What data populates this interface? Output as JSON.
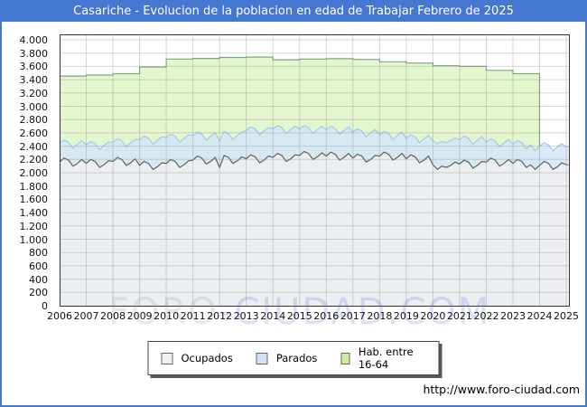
{
  "header": {
    "title": "Casariche - Evolucion de la poblacion en edad de Trabajar Febrero de 2025",
    "bg_color": "#4577d0",
    "text_color": "#ffffff"
  },
  "watermark": {
    "left": "FORO",
    "right": "-CIUDAD.COM"
  },
  "footer": {
    "url": "http://www.foro-ciudad.com"
  },
  "legend": {
    "items": [
      {
        "label": "Ocupados",
        "color": "#f2f2f2",
        "border": "#666666"
      },
      {
        "label": "Parados",
        "color": "#cfe2f8",
        "border": "#666666"
      },
      {
        "label": "Hab. entre 16-64",
        "color": "#c9ef9d",
        "border": "#666666"
      }
    ]
  },
  "chart_data": {
    "type": "area",
    "title": "Casariche - Evolucion de la poblacion en edad de Trabajar Febrero de 2025",
    "xlabel": "",
    "ylabel": "",
    "grid": true,
    "legend_position": "bottom",
    "x_axis": {
      "ticks": [
        2006,
        2007,
        2008,
        2009,
        2010,
        2011,
        2012,
        2013,
        2014,
        2015,
        2016,
        2017,
        2018,
        2019,
        2020,
        2021,
        2022,
        2023,
        2024,
        2025
      ],
      "range": [
        2006,
        2025.1
      ]
    },
    "y_axis": {
      "range": [
        0,
        4000
      ],
      "tick_step": 200,
      "tick_labels_top_to_bottom": [
        "4.000",
        "3.800",
        "3.600",
        "3.400",
        "3.200",
        "3.000",
        "2.800",
        "2.600",
        "2.400",
        "2.200",
        "2.000",
        "1.800",
        "1.600",
        "1.400",
        "1.200",
        "1.000",
        "800",
        "600",
        "400",
        "200",
        "0"
      ]
    },
    "x_spec": {
      "start": 2006,
      "points_per_year": 6,
      "count": 115,
      "extra": [
        2025.083
      ]
    },
    "series": [
      {
        "name": "Ocupados",
        "fill": "#f0f0f0",
        "line": "#606060",
        "values": [
          2160,
          2220,
          2190,
          2100,
          2140,
          2200,
          2140,
          2200,
          2170,
          2080,
          2120,
          2180,
          2170,
          2230,
          2200,
          2110,
          2150,
          2210,
          2110,
          2170,
          2140,
          2050,
          2090,
          2150,
          2140,
          2200,
          2170,
          2080,
          2120,
          2180,
          2190,
          2250,
          2220,
          2130,
          2170,
          2230,
          2080,
          2260,
          2230,
          2140,
          2180,
          2240,
          2210,
          2270,
          2240,
          2150,
          2190,
          2250,
          2230,
          2290,
          2260,
          2170,
          2210,
          2270,
          2260,
          2320,
          2290,
          2200,
          2240,
          2300,
          2250,
          2310,
          2280,
          2190,
          2230,
          2290,
          2220,
          2280,
          2250,
          2160,
          2200,
          2260,
          2250,
          2310,
          2280,
          2190,
          2230,
          2290,
          2210,
          2270,
          2240,
          2150,
          2190,
          2250,
          2120,
          2050,
          2100,
          2080,
          2110,
          2160,
          2130,
          2190,
          2160,
          2070,
          2110,
          2170,
          2160,
          2220,
          2190,
          2100,
          2140,
          2200,
          2140,
          2200,
          2170,
          2080,
          2120,
          2050,
          2110,
          2170,
          2140,
          2050,
          2090,
          2150,
          2120,
          2120
        ]
      },
      {
        "name": "Parados",
        "stacked_on": "Ocupados",
        "fill": "#d3e6f9",
        "line": "#a8c6e8",
        "values": [
          280,
          270,
          270,
          270,
          290,
          280,
          280,
          270,
          270,
          270,
          290,
          280,
          290,
          280,
          280,
          280,
          300,
          290,
          390,
          380,
          380,
          380,
          400,
          390,
          390,
          380,
          380,
          380,
          400,
          390,
          370,
          360,
          360,
          360,
          380,
          370,
          400,
          360,
          360,
          360,
          380,
          370,
          430,
          420,
          420,
          420,
          440,
          430,
          430,
          420,
          420,
          420,
          440,
          430,
          400,
          390,
          390,
          390,
          410,
          400,
          400,
          390,
          390,
          390,
          410,
          400,
          390,
          380,
          380,
          380,
          400,
          390,
          320,
          310,
          310,
          310,
          330,
          320,
          310,
          300,
          300,
          300,
          320,
          310,
          360,
          390,
          370,
          370,
          380,
          360,
          370,
          360,
          360,
          360,
          380,
          370,
          300,
          290,
          290,
          290,
          310,
          300,
          290,
          280,
          280,
          280,
          300,
          280,
          290,
          280,
          280,
          280,
          300,
          290,
          270,
          270
        ]
      },
      {
        "name": "Hab. entre 16-64",
        "step": "annual",
        "fill": "#dff5c6",
        "line": "#7aa87c",
        "years": [
          2006,
          2007,
          2008,
          2009,
          2010,
          2011,
          2012,
          2013,
          2014,
          2015,
          2016,
          2017,
          2018,
          2019,
          2020,
          2021,
          2022,
          2023
        ],
        "values": [
          3455,
          3470,
          3490,
          3590,
          3710,
          3720,
          3735,
          3740,
          3700,
          3710,
          3715,
          3705,
          3670,
          3650,
          3610,
          3600,
          3540,
          3490
        ],
        "ends_at": 2024.0
      }
    ]
  }
}
